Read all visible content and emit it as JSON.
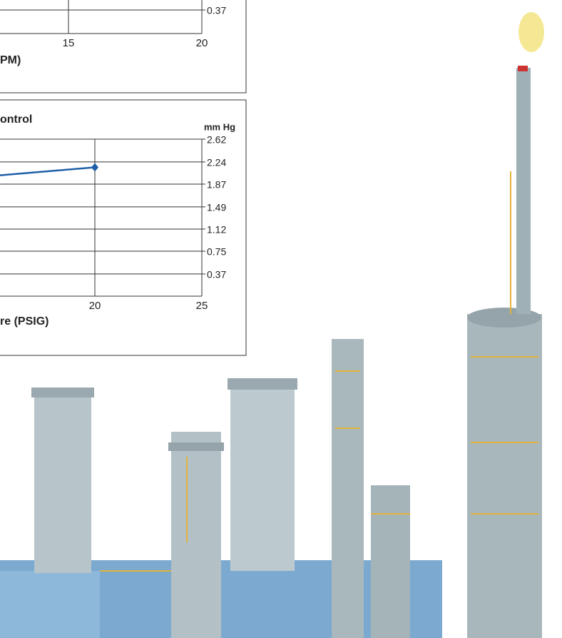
{
  "chart_data": [
    {
      "type": "line",
      "x_label": "PM)",
      "xlim": [
        0,
        20
      ],
      "xticks": [
        15,
        20
      ],
      "ylim": [
        0,
        0.37
      ],
      "yticks": [
        0.37
      ],
      "grid": true
    },
    {
      "type": "line",
      "title": "ontrol",
      "ylabel": "mm Hg",
      "x_label": "re (PSIG)",
      "xlim": [
        0,
        25
      ],
      "xticks": [
        20,
        25
      ],
      "ylim": [
        0,
        2.62
      ],
      "yticks": [
        2.62,
        2.24,
        1.87,
        1.49,
        1.12,
        0.75,
        0.37
      ],
      "grid": true,
      "series": [
        {
          "color": "#1f5fa8",
          "x": [
            15,
            20
          ],
          "values": [
            2.0,
            2.15
          ]
        }
      ]
    }
  ]
}
